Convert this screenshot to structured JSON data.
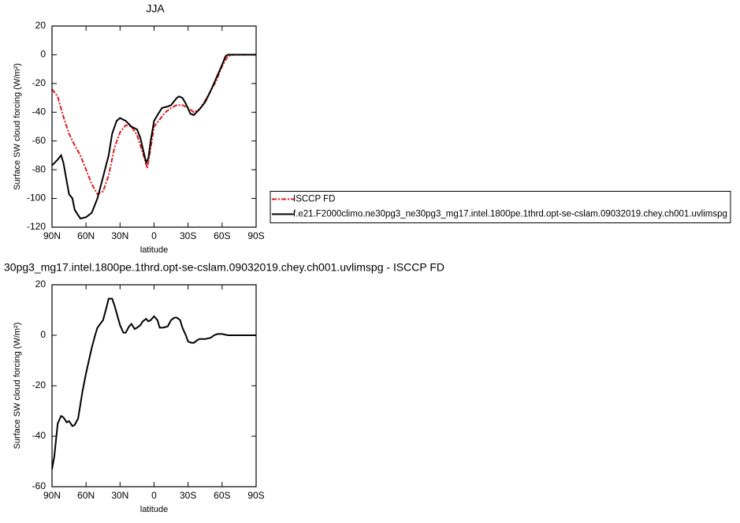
{
  "chart_data": [
    {
      "type": "line",
      "title": "JJA",
      "xlabel": "latitude",
      "ylabel": "Surface SW cloud forcing (W/m²)",
      "xlim": [
        90,
        -90
      ],
      "xticks": [
        {
          "value": 90,
          "label": "90N"
        },
        {
          "value": 60,
          "label": "60N"
        },
        {
          "value": 30,
          "label": "30N"
        },
        0,
        {
          "value": -30,
          "label": "30S"
        },
        {
          "value": -60,
          "label": "60S"
        },
        {
          "value": -90,
          "label": "90S"
        }
      ],
      "ylim": [
        -120,
        20
      ],
      "yticks": [
        -120,
        -100,
        -80,
        -60,
        -40,
        -20,
        0,
        20
      ],
      "legend": "right",
      "series": [
        {
          "name": "ISCCP FD",
          "color": "#e41a1c",
          "style": "dashed",
          "x": [
            90,
            85,
            80,
            75,
            70,
            65,
            60,
            55,
            50,
            45,
            40,
            35,
            30,
            25,
            20,
            15,
            10,
            6,
            3,
            0,
            -5,
            -10,
            -15,
            -20,
            -25,
            -30,
            -35,
            -40,
            -45,
            -50,
            -55,
            -60,
            -65,
            -70,
            -75,
            -80,
            -85,
            -90
          ],
          "values": [
            -24,
            -29,
            -43,
            -55,
            -63,
            -70,
            -80,
            -90,
            -97,
            -95,
            -84,
            -65,
            -54,
            -49,
            -50,
            -56,
            -68,
            -79,
            -65,
            -50,
            -45,
            -40,
            -37,
            -35,
            -35,
            -37,
            -40,
            -38,
            -32,
            -25,
            -18,
            -8,
            -1,
            0,
            0,
            0,
            0,
            0
          ]
        },
        {
          "name": "f.e21.F2000climo.ne30pg3_ne30pg3_mg17.intel.1800pe.1thrd.opt-se-cslam.09032019.chey.ch001.uvlimspg",
          "color": "#000000",
          "style": "solid",
          "x": [
            90,
            85,
            82,
            80,
            75,
            72,
            70,
            65,
            60,
            55,
            50,
            45,
            40,
            37,
            33,
            30,
            25,
            20,
            15,
            12,
            10,
            7,
            5,
            3,
            0,
            -3,
            -7,
            -12,
            -15,
            -20,
            -22,
            -25,
            -28,
            -32,
            -35,
            -40,
            -45,
            -50,
            -55,
            -60,
            -63,
            -65,
            -70,
            -75,
            -80,
            -85,
            -90
          ],
          "values": [
            -77,
            -73,
            -70,
            -75,
            -97,
            -100,
            -108,
            -114,
            -113,
            -110,
            -100,
            -85,
            -70,
            -55,
            -46,
            -44,
            -46,
            -50,
            -52,
            -58,
            -65,
            -75,
            -72,
            -60,
            -46,
            -42,
            -37,
            -36,
            -35,
            -30,
            -29,
            -30,
            -34,
            -41,
            -42,
            -38,
            -33,
            -25,
            -16,
            -7,
            -1,
            0,
            0,
            0,
            0,
            0,
            0
          ]
        }
      ]
    },
    {
      "type": "line",
      "title": "30pg3_mg17.intel.1800pe.1thrd.opt-se-cslam.09032019.chey.ch001.uvlimspg - ISCCP FD",
      "xlabel": "latitude",
      "ylabel": "Surface SW cloud forcing (W/m²)",
      "xlim": [
        90,
        -90
      ],
      "xticks": [
        {
          "value": 90,
          "label": "90N"
        },
        {
          "value": 60,
          "label": "60N"
        },
        {
          "value": 30,
          "label": "30N"
        },
        0,
        {
          "value": -30,
          "label": "30S"
        },
        {
          "value": -60,
          "label": "60S"
        },
        {
          "value": -90,
          "label": "90S"
        }
      ],
      "ylim": [
        -60,
        20
      ],
      "yticks": [
        -60,
        -40,
        -20,
        0,
        20
      ],
      "series": [
        {
          "color": "#000000",
          "style": "solid",
          "x": [
            90,
            88,
            85,
            82,
            80,
            77,
            75,
            72,
            70,
            67,
            63,
            60,
            55,
            52,
            50,
            45,
            42,
            40,
            37,
            35,
            30,
            27,
            25,
            22,
            20,
            17,
            15,
            12,
            10,
            7,
            5,
            3,
            0,
            -3,
            -5,
            -8,
            -12,
            -15,
            -18,
            -20,
            -23,
            -25,
            -28,
            -30,
            -33,
            -35,
            -38,
            -40,
            -45,
            -50,
            -53,
            -56,
            -60,
            -65,
            -70,
            -90
          ],
          "values": [
            -53,
            -48,
            -35,
            -32,
            -32.5,
            -34.5,
            -34,
            -36,
            -35.5,
            -33,
            -22,
            -15,
            -5,
            0,
            3,
            6,
            11,
            14.5,
            14.5,
            12,
            4,
            1,
            1,
            3.5,
            4.5,
            2.5,
            3,
            4,
            5.5,
            6.5,
            5.5,
            6,
            7.5,
            6,
            3,
            3,
            3.5,
            6,
            7,
            7,
            6,
            3,
            0,
            -2.5,
            -3,
            -3,
            -2,
            -1.5,
            -1.5,
            -1,
            0,
            0.5,
            0.5,
            0,
            0,
            0
          ]
        }
      ]
    }
  ]
}
